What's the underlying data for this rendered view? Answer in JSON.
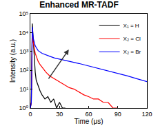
{
  "chart_data": {
    "type": "line",
    "title": "Enhanced MR-TADF",
    "x_label": "Time (μs)",
    "y_label": "Intensity (a.u.)",
    "log": "y",
    "xlim": [
      0,
      120
    ],
    "xticks": [
      0,
      30,
      60,
      90,
      120
    ],
    "ylim": [
      1,
      100000
    ],
    "yticks": [
      {
        "value": 1,
        "label": "10⁰"
      },
      {
        "value": 10,
        "label": "10¹"
      },
      {
        "value": 100,
        "label": "10²"
      },
      {
        "value": 1000,
        "label": "10³"
      },
      {
        "value": 10000,
        "label": "10⁴"
      },
      {
        "value": 100000,
        "label": "10⁵"
      }
    ],
    "grid": false,
    "legend": "upper right",
    "series": [
      {
        "name": "X₁ = H",
        "color": "#000000",
        "x": [
          0,
          1,
          2,
          3,
          4,
          5,
          6,
          8,
          10,
          12,
          15,
          18,
          21,
          24,
          27,
          30,
          33,
          36
        ],
        "values": [
          1,
          2,
          30000,
          3000,
          300,
          80,
          30,
          15,
          8,
          5,
          3,
          4,
          2,
          3,
          1,
          2,
          1,
          1
        ]
      },
      {
        "name": "X₂ = Cl",
        "color": "#ff0000",
        "x": [
          0,
          1,
          2,
          3,
          5,
          8,
          10,
          13,
          16,
          20,
          25,
          30,
          35,
          40,
          45,
          50,
          55,
          60,
          65,
          70,
          75,
          80,
          85,
          90
        ],
        "values": [
          1,
          2,
          15000,
          3000,
          800,
          300,
          200,
          120,
          80,
          50,
          35,
          25,
          18,
          12,
          10,
          7,
          5,
          4,
          3,
          3,
          2,
          2,
          1,
          1
        ]
      },
      {
        "name": "X₂ = Br",
        "color": "#0000ff",
        "x": [
          0,
          1,
          2,
          3,
          5,
          8,
          12,
          16,
          20,
          25,
          30,
          40,
          50,
          60,
          70,
          80,
          90,
          100,
          110,
          120
        ],
        "values": [
          1,
          2,
          20000,
          5000,
          2000,
          1100,
          800,
          650,
          550,
          450,
          400,
          300,
          230,
          170,
          130,
          95,
          70,
          50,
          35,
          25
        ]
      }
    ]
  }
}
